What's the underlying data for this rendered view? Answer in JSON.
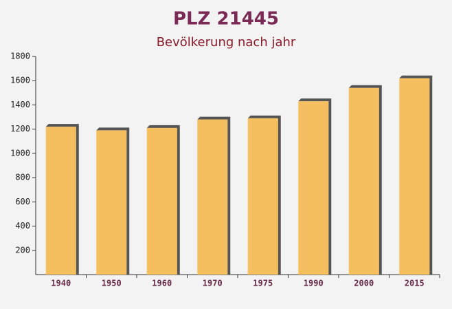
{
  "chart_data": {
    "type": "bar",
    "title": "PLZ 21445",
    "subtitle": "Bevölkerung nach jahr",
    "categories": [
      "1940",
      "1950",
      "1960",
      "1970",
      "1975",
      "1990",
      "2000",
      "2015"
    ],
    "values": [
      1220,
      1190,
      1210,
      1280,
      1290,
      1430,
      1540,
      1620
    ],
    "color": "#f5b94f",
    "ylim": [
      0,
      1800
    ],
    "yticks": [
      200,
      400,
      600,
      800,
      1000,
      1200,
      1400,
      1600,
      1800
    ],
    "grid": false
  }
}
